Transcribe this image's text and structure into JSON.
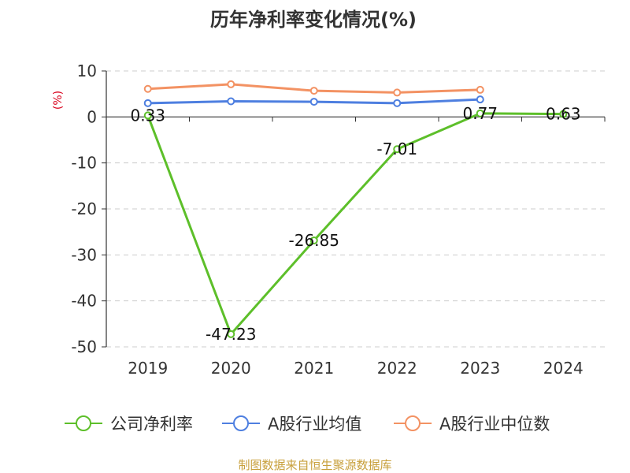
{
  "chart_data": {
    "type": "line",
    "title": "历年净利率变化情况(%)",
    "ylabel": "(%)",
    "categories": [
      "2019",
      "2020",
      "2021",
      "2022",
      "2023",
      "2024"
    ],
    "ylim": [
      -50,
      10
    ],
    "yticks": [
      10,
      0,
      -10,
      -20,
      -30,
      -40,
      -50
    ],
    "grid": true,
    "legend_position": "bottom",
    "series": [
      {
        "name": "公司净利率",
        "color": "#5dbf2a",
        "values": [
          0.33,
          -47.23,
          -26.85,
          -7.01,
          0.77,
          0.63
        ],
        "data_labels": [
          "0.33",
          "-47.23",
          "-26.85",
          "-7.01",
          "0.77",
          "0.63"
        ]
      },
      {
        "name": "A股行业均值",
        "color": "#4e7fe0",
        "values": [
          3.0,
          3.4,
          3.3,
          3.0,
          3.8,
          null
        ]
      },
      {
        "name": "A股行业中位数",
        "color": "#f39263",
        "values": [
          6.1,
          7.1,
          5.7,
          5.3,
          5.9,
          null
        ]
      }
    ]
  },
  "source_text": "制图数据来自恒生聚源数据库"
}
